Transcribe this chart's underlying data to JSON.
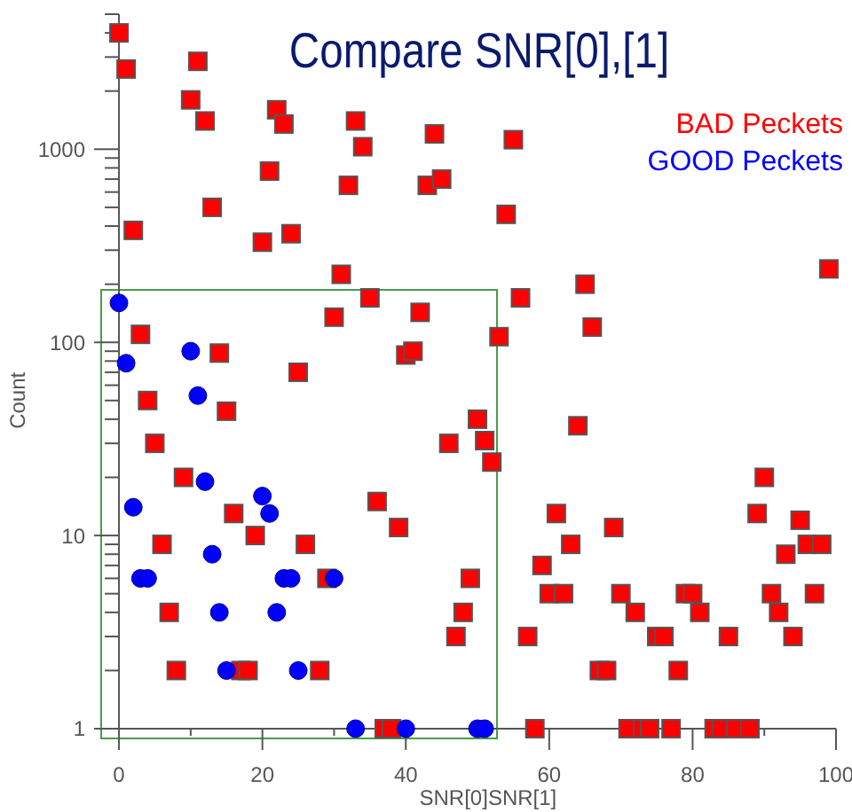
{
  "chart_data": {
    "type": "scatter",
    "title": "Compare SNR[0],[1]",
    "xlabel": "SNR[0]SNR[1]",
    "ylabel": "Count",
    "log": "y",
    "grid": false,
    "legend": "top right",
    "xlim": [
      -3,
      100
    ],
    "xticks": [
      0,
      {
        "value": 10,
        "label": null
      },
      20,
      {
        "value": 30,
        "label": null
      },
      40,
      {
        "value": 50,
        "label": null
      },
      60,
      {
        "value": 70,
        "label": null
      },
      80,
      {
        "value": 90,
        "label": null
      },
      100
    ],
    "ylim": [
      1,
      5000
    ],
    "yticks": [
      1,
      {
        "value": 2,
        "label": null
      },
      {
        "value": 3,
        "label": null
      },
      {
        "value": 4,
        "label": null
      },
      {
        "value": 5,
        "label": null
      },
      {
        "value": 6,
        "label": null
      },
      {
        "value": 7,
        "label": null
      },
      {
        "value": 8,
        "label": null
      },
      {
        "value": 9,
        "label": null
      },
      10,
      {
        "value": 20,
        "label": null
      },
      {
        "value": 30,
        "label": null
      },
      {
        "value": 40,
        "label": null
      },
      {
        "value": 50,
        "label": null
      },
      {
        "value": 60,
        "label": null
      },
      {
        "value": 70,
        "label": null
      },
      {
        "value": 80,
        "label": null
      },
      {
        "value": 90,
        "label": null
      },
      100,
      {
        "value": 200,
        "label": null
      },
      {
        "value": 300,
        "label": null
      },
      {
        "value": 400,
        "label": null
      },
      {
        "value": 500,
        "label": null
      },
      {
        "value": 600,
        "label": null
      },
      {
        "value": 700,
        "label": null
      },
      {
        "value": 800,
        "label": null
      },
      {
        "value": 900,
        "label": null
      },
      1000,
      {
        "value": 2000,
        "label": null
      },
      {
        "value": 3000,
        "label": null
      },
      {
        "value": 4000,
        "label": null
      },
      {
        "value": 5000,
        "label": null
      }
    ],
    "series": [
      {
        "name": "BAD Peckets",
        "color": "#ff0000",
        "marker": "square",
        "x": [
          0,
          1,
          11,
          10,
          12,
          22,
          23,
          33,
          34,
          21,
          32,
          43,
          45,
          2,
          13,
          20,
          24,
          31,
          35,
          42,
          30,
          40,
          41,
          3,
          14,
          25,
          4,
          44,
          55,
          54,
          99,
          56,
          65,
          66,
          53,
          15,
          5,
          9,
          16,
          19,
          6,
          26,
          29,
          7,
          8,
          17,
          18,
          28,
          36,
          39,
          37,
          38,
          50,
          46,
          51,
          52,
          64,
          49,
          48,
          47,
          57,
          59,
          61,
          63,
          69,
          60,
          62,
          70,
          72,
          75,
          76,
          67,
          68,
          78,
          79,
          80,
          81,
          85,
          90,
          89,
          95,
          96,
          98,
          93,
          91,
          97,
          92,
          94,
          58,
          71,
          73,
          74,
          77,
          83,
          84,
          86,
          88
        ],
        "values": [
          4000,
          2600,
          2850,
          1800,
          1400,
          1600,
          1350,
          1400,
          1030,
          770,
          650,
          650,
          700,
          380,
          500,
          330,
          365,
          225,
          170,
          143,
          135,
          86,
          90,
          110,
          88,
          70,
          50,
          1200,
          1120,
          460,
          240,
          170,
          200,
          120,
          107,
          44,
          30,
          20,
          13,
          10,
          9,
          9,
          6,
          4,
          2,
          2,
          2,
          2,
          15,
          11,
          1,
          1,
          40,
          30,
          31,
          24,
          37,
          6,
          4,
          3,
          3,
          7,
          13,
          9,
          11,
          5,
          5,
          5,
          4,
          3,
          3,
          2,
          2,
          2,
          5,
          5,
          4,
          3,
          20,
          13,
          12,
          9,
          9,
          8,
          5,
          5,
          4,
          3,
          1,
          1,
          1,
          1,
          1,
          1,
          1,
          1,
          1
        ]
      },
      {
        "name": "GOOD Peckets",
        "color": "#0000ff",
        "marker": "circle",
        "x": [
          0,
          1,
          10,
          11,
          12,
          2,
          20,
          21,
          13,
          3,
          4,
          23,
          24,
          30,
          14,
          22,
          15,
          25,
          33,
          40,
          50,
          51
        ],
        "values": [
          160,
          78,
          90,
          53,
          19,
          14,
          16,
          13,
          8,
          6,
          6,
          6,
          6,
          6,
          4,
          4,
          2,
          2,
          1,
          1,
          1,
          1
        ]
      }
    ]
  }
}
